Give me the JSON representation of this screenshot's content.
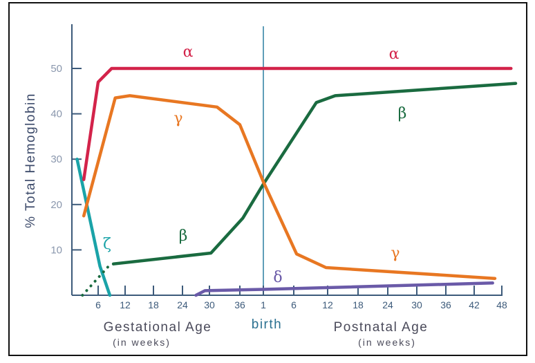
{
  "chart_data": {
    "type": "line",
    "title": "",
    "ylabel": "% Total Hemoglobin",
    "ylim": [
      0,
      58
    ],
    "yticks": [
      10,
      20,
      30,
      40,
      50
    ],
    "grid": false,
    "x_axis": {
      "gestational": {
        "label": "Gestational Age",
        "sublabel": "(in weeks)",
        "ticks": [
          6,
          12,
          18,
          24,
          30,
          36
        ]
      },
      "birth": {
        "label": "birth",
        "tick": 1
      },
      "postnatal": {
        "label": "Postnatal Age",
        "sublabel": "(in weeks)",
        "ticks": [
          6,
          12,
          18,
          24,
          30,
          36,
          42,
          48
        ]
      }
    },
    "series": [
      {
        "name": "α",
        "color": "#d3234a",
        "gestational": [
          [
            2.8,
            25.5
          ],
          [
            6,
            47
          ],
          [
            9,
            50
          ],
          [
            40,
            50
          ]
        ],
        "postnatal": [
          [
            1,
            50
          ],
          [
            50,
            50
          ]
        ]
      },
      {
        "name": "γ",
        "color": "#e87722",
        "gestational": [
          [
            2.8,
            17.5
          ],
          [
            9.8,
            43.5
          ],
          [
            13,
            44
          ],
          [
            31.5,
            41.5
          ],
          [
            36,
            37.6
          ],
          [
            40,
            25
          ]
        ],
        "postnatal": [
          [
            1,
            25
          ],
          [
            6.5,
            9.1
          ],
          [
            11.7,
            6.1
          ],
          [
            46.5,
            3.7
          ]
        ]
      },
      {
        "name": "β",
        "color": "#1a6b40",
        "gestational_dotted": [
          [
            2.5,
            0
          ],
          [
            8.6,
            6.7
          ]
        ],
        "gestational": [
          [
            9.4,
            6.9
          ],
          [
            30.3,
            9.3
          ],
          [
            36.5,
            17
          ],
          [
            40,
            24.5
          ]
        ],
        "postnatal": [
          [
            1,
            24.5
          ],
          [
            10,
            42.5
          ],
          [
            13.5,
            44
          ],
          [
            51,
            46.7
          ]
        ]
      },
      {
        "name": "ζ",
        "color": "#1aa3a8",
        "gestational": [
          [
            1.3,
            30
          ],
          [
            6.4,
            6.4
          ],
          [
            8.6,
            0
          ]
        ],
        "postnatal": []
      },
      {
        "name": "δ",
        "color": "#6a5aa8",
        "gestational": [
          [
            27,
            0
          ],
          [
            29,
            1
          ],
          [
            40,
            1.3
          ]
        ],
        "postnatal": [
          [
            1,
            1.3
          ],
          [
            46,
            2.7
          ]
        ]
      }
    ],
    "annotations": [
      "α",
      "α",
      "γ",
      "γ",
      "β",
      "β",
      "ζ",
      "δ"
    ]
  }
}
